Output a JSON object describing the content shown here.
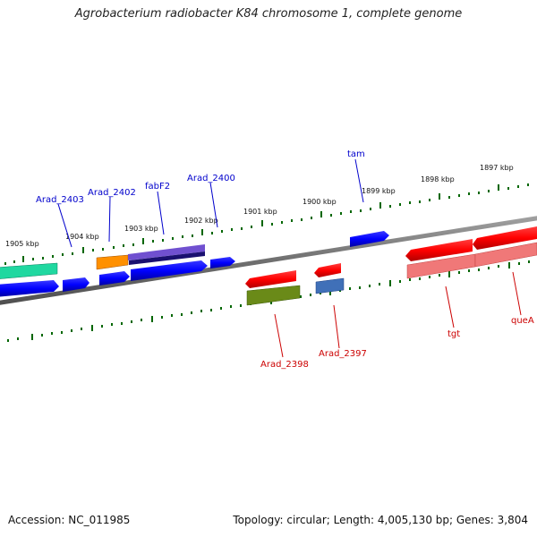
{
  "title": "Agrobacterium radiobacter K84 chromosome 1, complete genome",
  "accession": "Accession: NC_011985",
  "summary": "Topology: circular; Length: 4,005,130 bp; Genes: 3,804",
  "scale_labels": [
    "1905 kbp",
    "1904 kbp",
    "1903 kbp",
    "1902 kbp",
    "1901 kbp",
    "1900 kbp",
    "1899 kbp",
    "1898 kbp",
    "1897 kbp"
  ],
  "forward_genes": [
    "Arad_2403",
    "Arad_2402",
    "fabF2",
    "Arad_2400",
    "tam"
  ],
  "reverse_genes": [
    "Arad_2398",
    "Arad_2397",
    "tgt",
    "queA"
  ],
  "colors": {
    "forward_label": "#0000cc",
    "reverse_label": "#cc0000",
    "forward_gene": "#0000ff",
    "reverse_gene": "#ff0000",
    "tick": "#006600",
    "backbone": "#808080"
  }
}
